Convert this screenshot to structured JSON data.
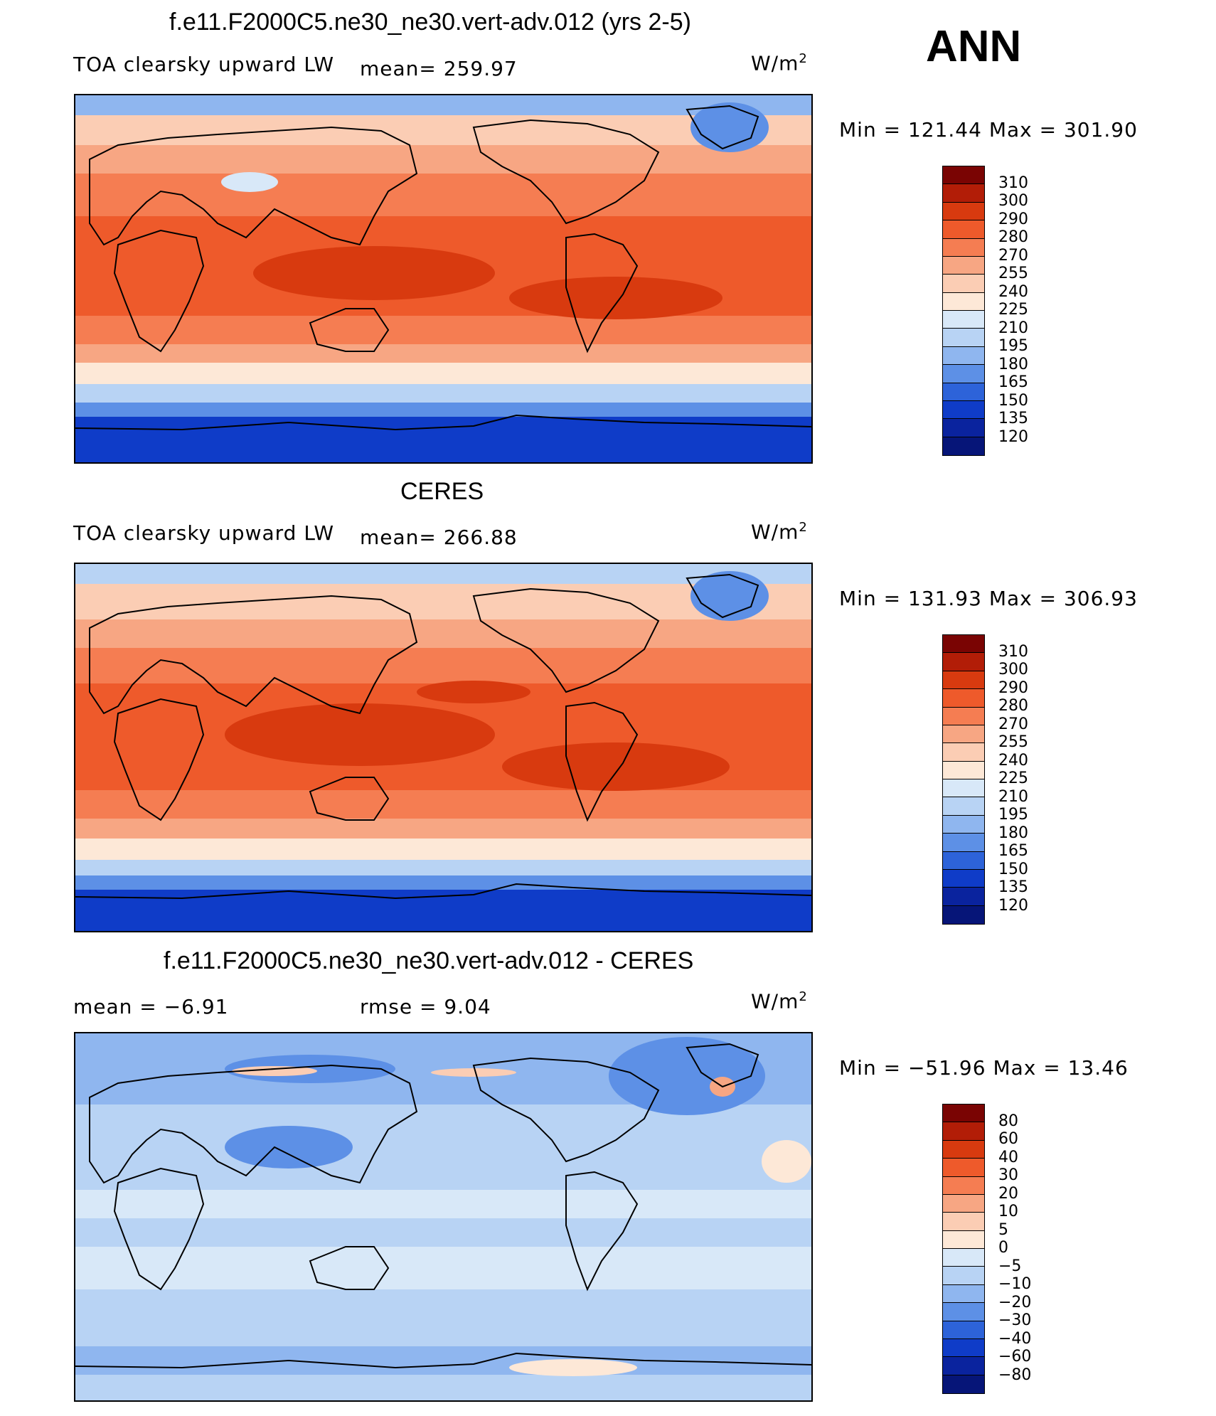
{
  "header": {
    "season": "ANN"
  },
  "panels": [
    {
      "title": "f.e11.F2000C5.ne30_ne30.vert-adv.012 (yrs 2-5)",
      "left_label": "TOA clearsky upward LW",
      "mean_label": "mean= 259.97",
      "units": "W/m",
      "units_sup": "2",
      "minmax": "Min = 121.44 Max = 301.90",
      "levels": [
        "310",
        "300",
        "290",
        "280",
        "270",
        "255",
        "240",
        "225",
        "210",
        "195",
        "180",
        "165",
        "150",
        "135",
        "120"
      ]
    },
    {
      "title": "CERES",
      "left_label": "TOA clearsky upward LW",
      "mean_label": "mean= 266.88",
      "units": "W/m",
      "units_sup": "2",
      "minmax": "Min = 131.93 Max = 306.93",
      "levels": [
        "310",
        "300",
        "290",
        "280",
        "270",
        "255",
        "240",
        "225",
        "210",
        "195",
        "180",
        "165",
        "150",
        "135",
        "120"
      ]
    },
    {
      "title": "f.e11.F2000C5.ne30_ne30.vert-adv.012 - CERES",
      "left_label": "mean =   −6.91",
      "mean_label": "rmse =    9.04",
      "units": "W/m",
      "units_sup": "2",
      "minmax": "Min = −51.96 Max =   13.46",
      "levels": [
        "80",
        "60",
        "40",
        "30",
        "20",
        "10",
        "5",
        "0",
        "−5",
        "−10",
        "−20",
        "−30",
        "−40",
        "−60",
        "−80"
      ]
    }
  ],
  "colors": {
    "field_scale": [
      "#7a0403",
      "#b21d07",
      "#d83a0f",
      "#ee5a2b",
      "#f57d52",
      "#f7a683",
      "#fbcdb4",
      "#fde8d7",
      "#d8e8f8",
      "#b8d3f4",
      "#8fb6ef",
      "#5d90e6",
      "#2d63d9",
      "#0f3cc8",
      "#0a239e",
      "#061578"
    ],
    "diff_scale": [
      "#7a0403",
      "#b21d07",
      "#d83a0f",
      "#ee5a2b",
      "#f57d52",
      "#f7a683",
      "#fbcdb4",
      "#fde8d7",
      "#d8e8f8",
      "#b8d3f4",
      "#8fb6ef",
      "#5d90e6",
      "#2d63d9",
      "#0f3cc8",
      "#0a239e",
      "#061578"
    ]
  }
}
